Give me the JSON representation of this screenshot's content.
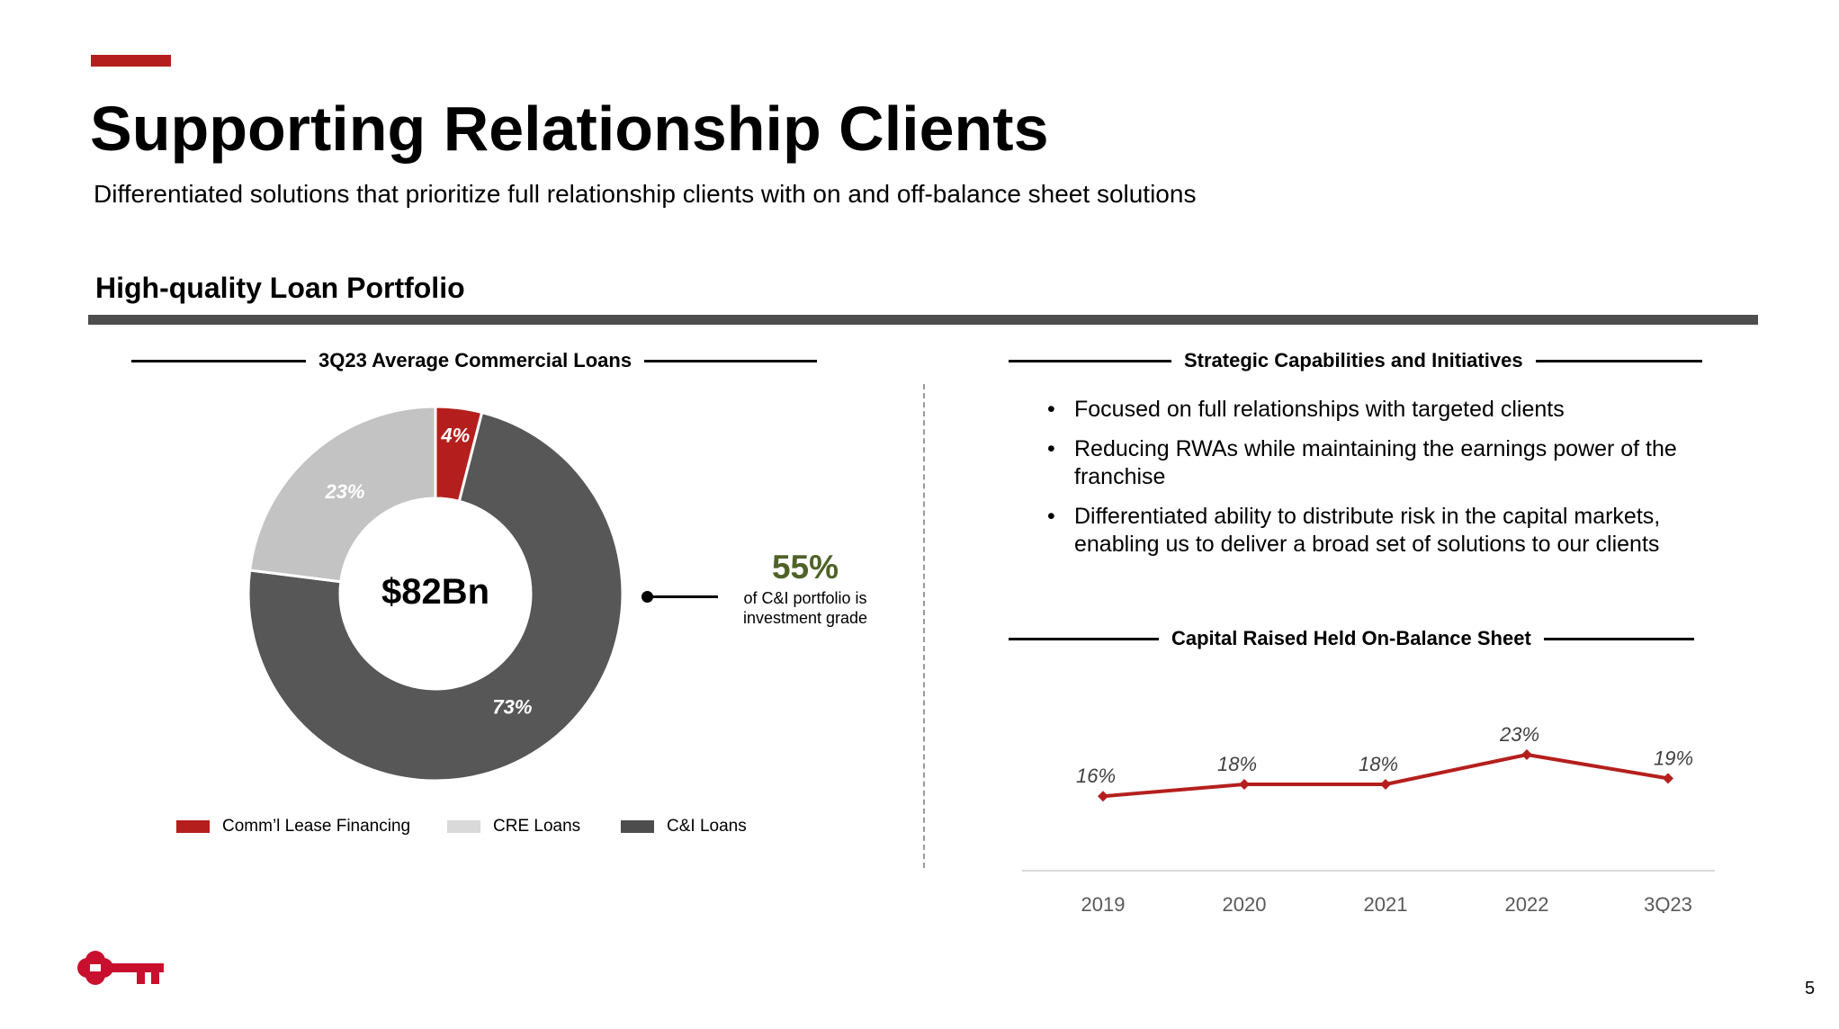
{
  "title": "Supporting Relationship Clients",
  "subtitle": "Differentiated solutions that prioritize full relationship clients with on and off-balance sheet solutions",
  "section_heading": "High-quality Loan Portfolio",
  "left_panel": {
    "title": "3Q23 Average Commercial Loans",
    "center_label": "$82Bn",
    "callout": {
      "value": "55%",
      "note_line1": "of C&I portfolio is",
      "note_line2": "investment grade"
    }
  },
  "right_panel": {
    "title": "Strategic Capabilities and Initiatives",
    "bullets": [
      "Focused on full relationships with targeted clients",
      "Reducing RWAs while maintaining the earnings power of the franchise",
      "Differentiated ability to distribute risk in the capital markets, enabling us to deliver a broad set of solutions to our clients"
    ],
    "chart_title": "Capital Raised Held On-Balance Sheet"
  },
  "colors": {
    "accent": "#b41f1d",
    "dark_gray": "#575757",
    "light_gray": "#c3c3c3",
    "olive": "#4f6228"
  },
  "logo_icon": "key-icon",
  "page_number": "5",
  "chart_data": [
    {
      "type": "pie",
      "variant": "donut",
      "title": "3Q23 Average Commercial Loans",
      "center_label": "$82Bn",
      "slices": [
        {
          "name": "Comm’l Lease Financing",
          "value": 4,
          "label": "4%",
          "color": "#b41f1d"
        },
        {
          "name": "C&I Loans",
          "value": 73,
          "label": "73%",
          "color": "#575757"
        },
        {
          "name": "CRE Loans",
          "value": 23,
          "label": "23%",
          "color": "#c3c3c3"
        }
      ],
      "legend": [
        {
          "name": "Comm’l Lease Financing",
          "color": "#b41f1d"
        },
        {
          "name": "CRE Loans",
          "color": "#d9d9d9"
        },
        {
          "name": "C&I Loans",
          "color": "#4d4d4d"
        }
      ],
      "legend_position": "bottom"
    },
    {
      "type": "line",
      "title": "Capital Raised Held On-Balance Sheet",
      "categories": [
        "2019",
        "2020",
        "2021",
        "2022",
        "3Q23"
      ],
      "values": [
        16,
        18,
        18,
        23,
        19
      ],
      "labels": [
        "16%",
        "18%",
        "18%",
        "23%",
        "19%"
      ],
      "color": "#b41f1d",
      "grid": false
    }
  ]
}
